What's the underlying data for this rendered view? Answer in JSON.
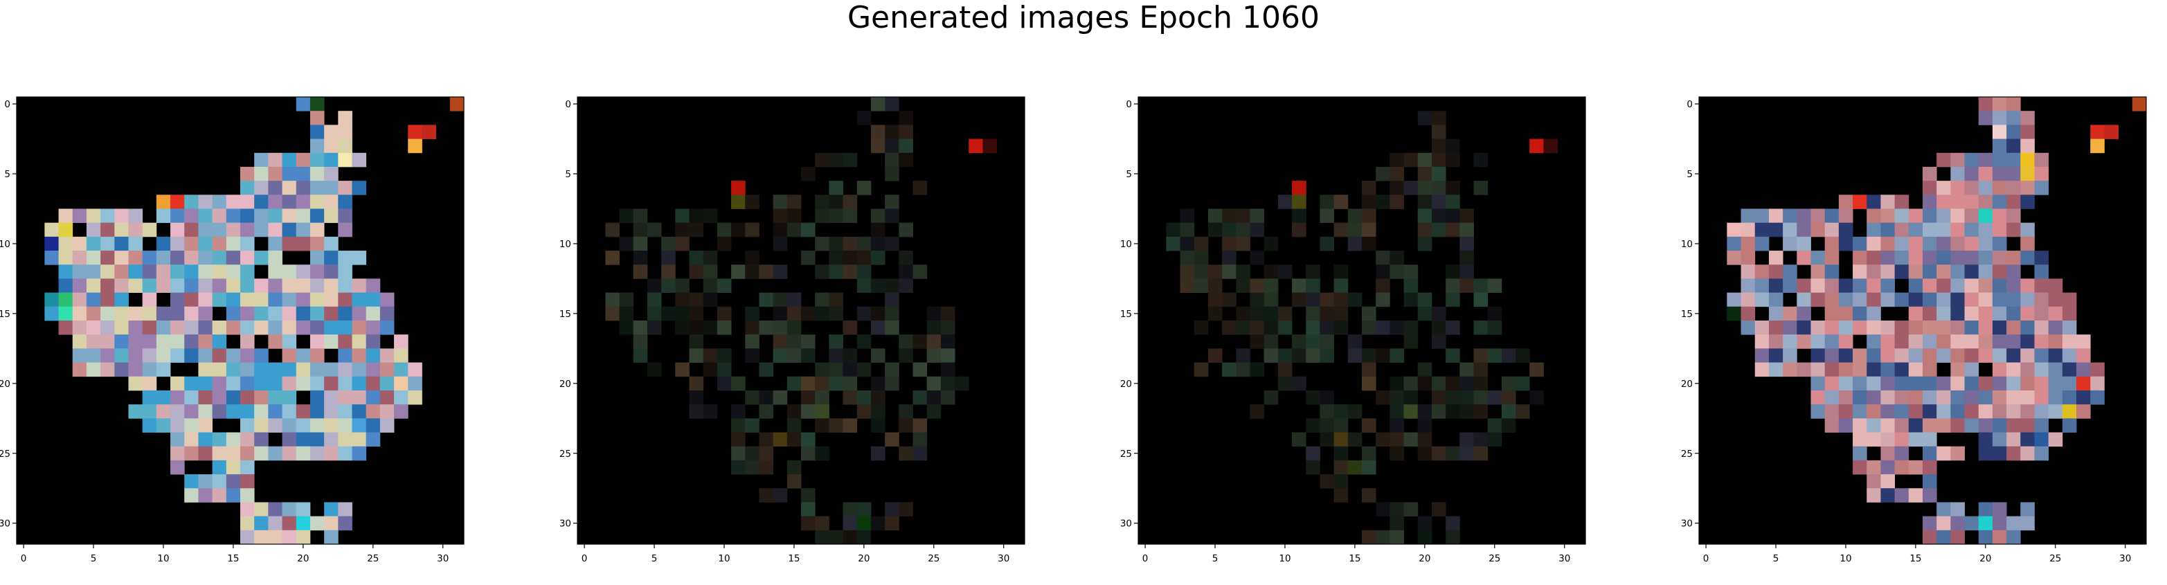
{
  "figure": {
    "title": "Generated images Epoch 1060"
  },
  "chart_data": [
    {
      "type": "heatmap",
      "title": "",
      "grid_size": [
        32,
        32
      ],
      "xlim": [
        -0.5,
        31.5
      ],
      "ylim": [
        31.5,
        -0.5
      ],
      "xticks": [
        0,
        5,
        10,
        15,
        20,
        25,
        30
      ],
      "yticks": [
        0,
        5,
        10,
        15,
        20,
        25,
        30
      ],
      "grid": false,
      "background_color": "#000000",
      "variant": "bright",
      "brightness": 1.0,
      "seed": 11,
      "palette": [
        "#2a6fb0",
        "#3a9fcf",
        "#c98a8a",
        "#b6b0c8",
        "#d4a9b0",
        "#8fc0d8",
        "#e6c9b5",
        "#6c6aa0",
        "#a35d6a",
        "#7fa9c9",
        "#c7d6c2",
        "#4d87c7",
        "#e8b7c6",
        "#9c7fb1",
        "#d9d2a8",
        "#5ab0c8"
      ],
      "accents": [
        {
          "row": 7,
          "col": 11,
          "color": "#e53223"
        },
        {
          "row": 7,
          "col": 10,
          "color": "#f0a030"
        },
        {
          "row": 2,
          "col": 28,
          "color": "#d62a1e"
        },
        {
          "row": 2,
          "col": 29,
          "color": "#c4281c"
        },
        {
          "row": 3,
          "col": 28,
          "color": "#f5b040"
        },
        {
          "row": 0,
          "col": 31,
          "color": "#b5451b"
        },
        {
          "row": 14,
          "col": 2,
          "color": "#1c8fa0"
        },
        {
          "row": 15,
          "col": 3,
          "color": "#30e0b0"
        },
        {
          "row": 14,
          "col": 3,
          "color": "#2ac070"
        },
        {
          "row": 9,
          "col": 3,
          "color": "#e0d040"
        },
        {
          "row": 10,
          "col": 2,
          "color": "#1a2a90"
        },
        {
          "row": 4,
          "col": 23,
          "color": "#f6eab0"
        },
        {
          "row": 0,
          "col": 21,
          "color": "#1a4a20"
        },
        {
          "row": 20,
          "col": 27,
          "color": "#f4c8a0"
        },
        {
          "row": 23,
          "col": 24,
          "color": "#4aa0d8"
        },
        {
          "row": 30,
          "col": 20,
          "color": "#24d0e0"
        }
      ]
    },
    {
      "type": "heatmap",
      "title": "",
      "grid_size": [
        32,
        32
      ],
      "xlim": [
        -0.5,
        31.5
      ],
      "ylim": [
        31.5,
        -0.5
      ],
      "xticks": [
        0,
        5,
        10,
        15,
        20,
        25,
        30
      ],
      "yticks": [
        0,
        5,
        10,
        15,
        20,
        25,
        30
      ],
      "grid": false,
      "background_color": "#000000",
      "variant": "dim",
      "brightness": 0.22,
      "seed": 23,
      "palette": [
        "#3a2a20",
        "#2a3a2a",
        "#2a2a3a",
        "#4a3a2a",
        "#3a4a3a",
        "#2a4a3a"
      ],
      "accents": [
        {
          "row": 3,
          "col": 28,
          "color": "#c8180e"
        },
        {
          "row": 3,
          "col": 29,
          "color": "#3a0a08"
        },
        {
          "row": 6,
          "col": 11,
          "color": "#b8140c"
        },
        {
          "row": 7,
          "col": 11,
          "color": "#4a4a10"
        },
        {
          "row": 22,
          "col": 17,
          "color": "#3a4a22"
        },
        {
          "row": 20,
          "col": 16,
          "color": "#4a3a24"
        },
        {
          "row": 24,
          "col": 14,
          "color": "#4a3a10"
        },
        {
          "row": 30,
          "col": 20,
          "color": "#0a3a0a"
        }
      ]
    },
    {
      "type": "heatmap",
      "title": "",
      "grid_size": [
        32,
        32
      ],
      "xlim": [
        -0.5,
        31.5
      ],
      "ylim": [
        31.5,
        -0.5
      ],
      "xticks": [
        0,
        5,
        10,
        15,
        20,
        25,
        30
      ],
      "yticks": [
        0,
        5,
        10,
        15,
        20,
        25,
        30
      ],
      "grid": false,
      "background_color": "#000000",
      "variant": "dim",
      "brightness": 0.22,
      "seed": 37,
      "palette": [
        "#3a2a20",
        "#2a3a2a",
        "#2a2a3a",
        "#4a3a2a",
        "#3a4a3a",
        "#2a4a3a"
      ],
      "accents": [
        {
          "row": 3,
          "col": 28,
          "color": "#c8180e"
        },
        {
          "row": 3,
          "col": 29,
          "color": "#3a0a08"
        },
        {
          "row": 6,
          "col": 11,
          "color": "#b8140c"
        },
        {
          "row": 7,
          "col": 11,
          "color": "#4a4a10"
        },
        {
          "row": 22,
          "col": 19,
          "color": "#3a4a22"
        },
        {
          "row": 20,
          "col": 16,
          "color": "#4a3a24"
        },
        {
          "row": 24,
          "col": 14,
          "color": "#4a3a10"
        },
        {
          "row": 26,
          "col": 15,
          "color": "#2a3a10"
        }
      ]
    },
    {
      "type": "heatmap",
      "title": "",
      "grid_size": [
        32,
        32
      ],
      "xlim": [
        -0.5,
        31.5
      ],
      "ylim": [
        31.5,
        -0.5
      ],
      "xticks": [
        0,
        5,
        10,
        15,
        20,
        25,
        30
      ],
      "yticks": [
        0,
        5,
        10,
        15,
        20,
        25,
        30
      ],
      "grid": false,
      "background_color": "#000000",
      "variant": "bright",
      "brightness": 1.0,
      "seed": 53,
      "palette": [
        "#c98a8a",
        "#b87f8a",
        "#4d6fa0",
        "#8fa0c0",
        "#d4a9b0",
        "#a35d6a",
        "#6c8ab0",
        "#e6b5b5",
        "#7a6a9a",
        "#c07a7a",
        "#2a3a70",
        "#9ab0c8",
        "#d88a90",
        "#5a7aa8"
      ],
      "accents": [
        {
          "row": 7,
          "col": 11,
          "color": "#e53223"
        },
        {
          "row": 2,
          "col": 28,
          "color": "#d62a1e"
        },
        {
          "row": 2,
          "col": 29,
          "color": "#c4281c"
        },
        {
          "row": 3,
          "col": 28,
          "color": "#f5b040"
        },
        {
          "row": 0,
          "col": 31,
          "color": "#b5451b"
        },
        {
          "row": 2,
          "col": 21,
          "color": "#f0d0d0"
        },
        {
          "row": 4,
          "col": 23,
          "color": "#f0c020"
        },
        {
          "row": 5,
          "col": 23,
          "color": "#e8c030"
        },
        {
          "row": 8,
          "col": 20,
          "color": "#20d0c0"
        },
        {
          "row": 9,
          "col": 2,
          "color": "#f0b8b8"
        },
        {
          "row": 20,
          "col": 27,
          "color": "#e03020"
        },
        {
          "row": 22,
          "col": 26,
          "color": "#e0c020"
        },
        {
          "row": 24,
          "col": 24,
          "color": "#2a5aa0"
        },
        {
          "row": 30,
          "col": 20,
          "color": "#20d0d0"
        },
        {
          "row": 15,
          "col": 2,
          "color": "#0a2a10"
        }
      ]
    }
  ]
}
